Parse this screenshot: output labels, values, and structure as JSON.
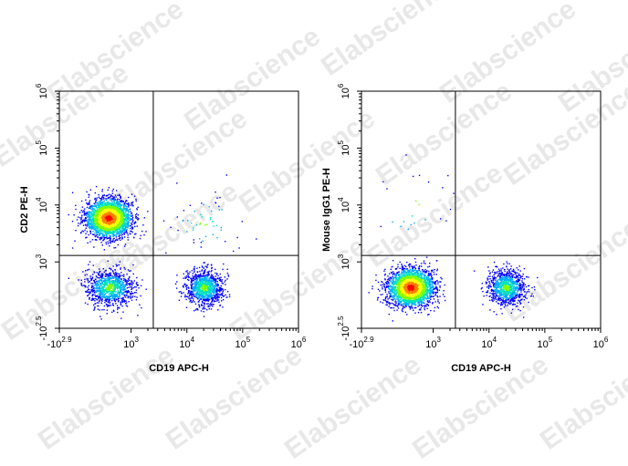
{
  "watermark": "Elabscience",
  "chart_data": [
    {
      "type": "scatter",
      "subtype": "flow-cytometry-density-dotplot",
      "xlabel": "CD19 APC-H",
      "ylabel": "CD2 PE-H",
      "x_scale": "biexponential-log",
      "y_scale": "biexponential-log",
      "xlim_log10": [
        2.9,
        6
      ],
      "ylim_log10": [
        2.5,
        6
      ],
      "x_ticks": [
        "-10^2.9",
        "10^3",
        "10^4",
        "10^5",
        "10^6"
      ],
      "y_ticks": [
        "-10^2.5",
        "10^3",
        "10^4",
        "10^5",
        "10^6"
      ],
      "quadrant_gate": {
        "x": 2500,
        "y": 1300
      },
      "populations": [
        {
          "label": "CD19- CD2+",
          "center_x": 480,
          "center_y": 6000,
          "relative_density": "very high"
        },
        {
          "label": "CD19- CD2-",
          "center_x": 500,
          "center_y": 350,
          "relative_density": "medium"
        },
        {
          "label": "CD19+ CD2-",
          "center_x": 20000,
          "center_y": 350,
          "relative_density": "medium"
        },
        {
          "label": "CD19+ CD2+",
          "center_x": 20000,
          "center_y": 5000,
          "relative_density": "sparse"
        }
      ],
      "colormap": [
        "#0000ff",
        "#00aaff",
        "#00e0c0",
        "#7fff00",
        "#ffff00",
        "#ff8000",
        "#ff0000"
      ],
      "grid": false
    },
    {
      "type": "scatter",
      "subtype": "flow-cytometry-density-dotplot",
      "xlabel": "CD19 APC-H",
      "ylabel": "Mouse IgG1 PE-H",
      "x_scale": "biexponential-log",
      "y_scale": "biexponential-log",
      "xlim_log10": [
        2.9,
        6
      ],
      "ylim_log10": [
        2.5,
        6
      ],
      "x_ticks": [
        "-10^2.9",
        "10^3",
        "10^4",
        "10^5",
        "10^6"
      ],
      "y_ticks": [
        "-10^2.5",
        "10^3",
        "10^4",
        "10^5",
        "10^6"
      ],
      "quadrant_gate": {
        "x": 2500,
        "y": 1300
      },
      "populations": [
        {
          "label": "CD19- IgG1-",
          "center_x": 480,
          "center_y": 350,
          "relative_density": "very high"
        },
        {
          "label": "CD19+ IgG1-",
          "center_x": 20000,
          "center_y": 350,
          "relative_density": "medium"
        },
        {
          "label": "CD19- IgG1+",
          "center_x": 500,
          "center_y": 10000,
          "relative_density": "rare"
        }
      ],
      "colormap": [
        "#0000ff",
        "#00aaff",
        "#00e0c0",
        "#7fff00",
        "#ffff00",
        "#ff8000",
        "#ff0000"
      ],
      "grid": false
    }
  ]
}
